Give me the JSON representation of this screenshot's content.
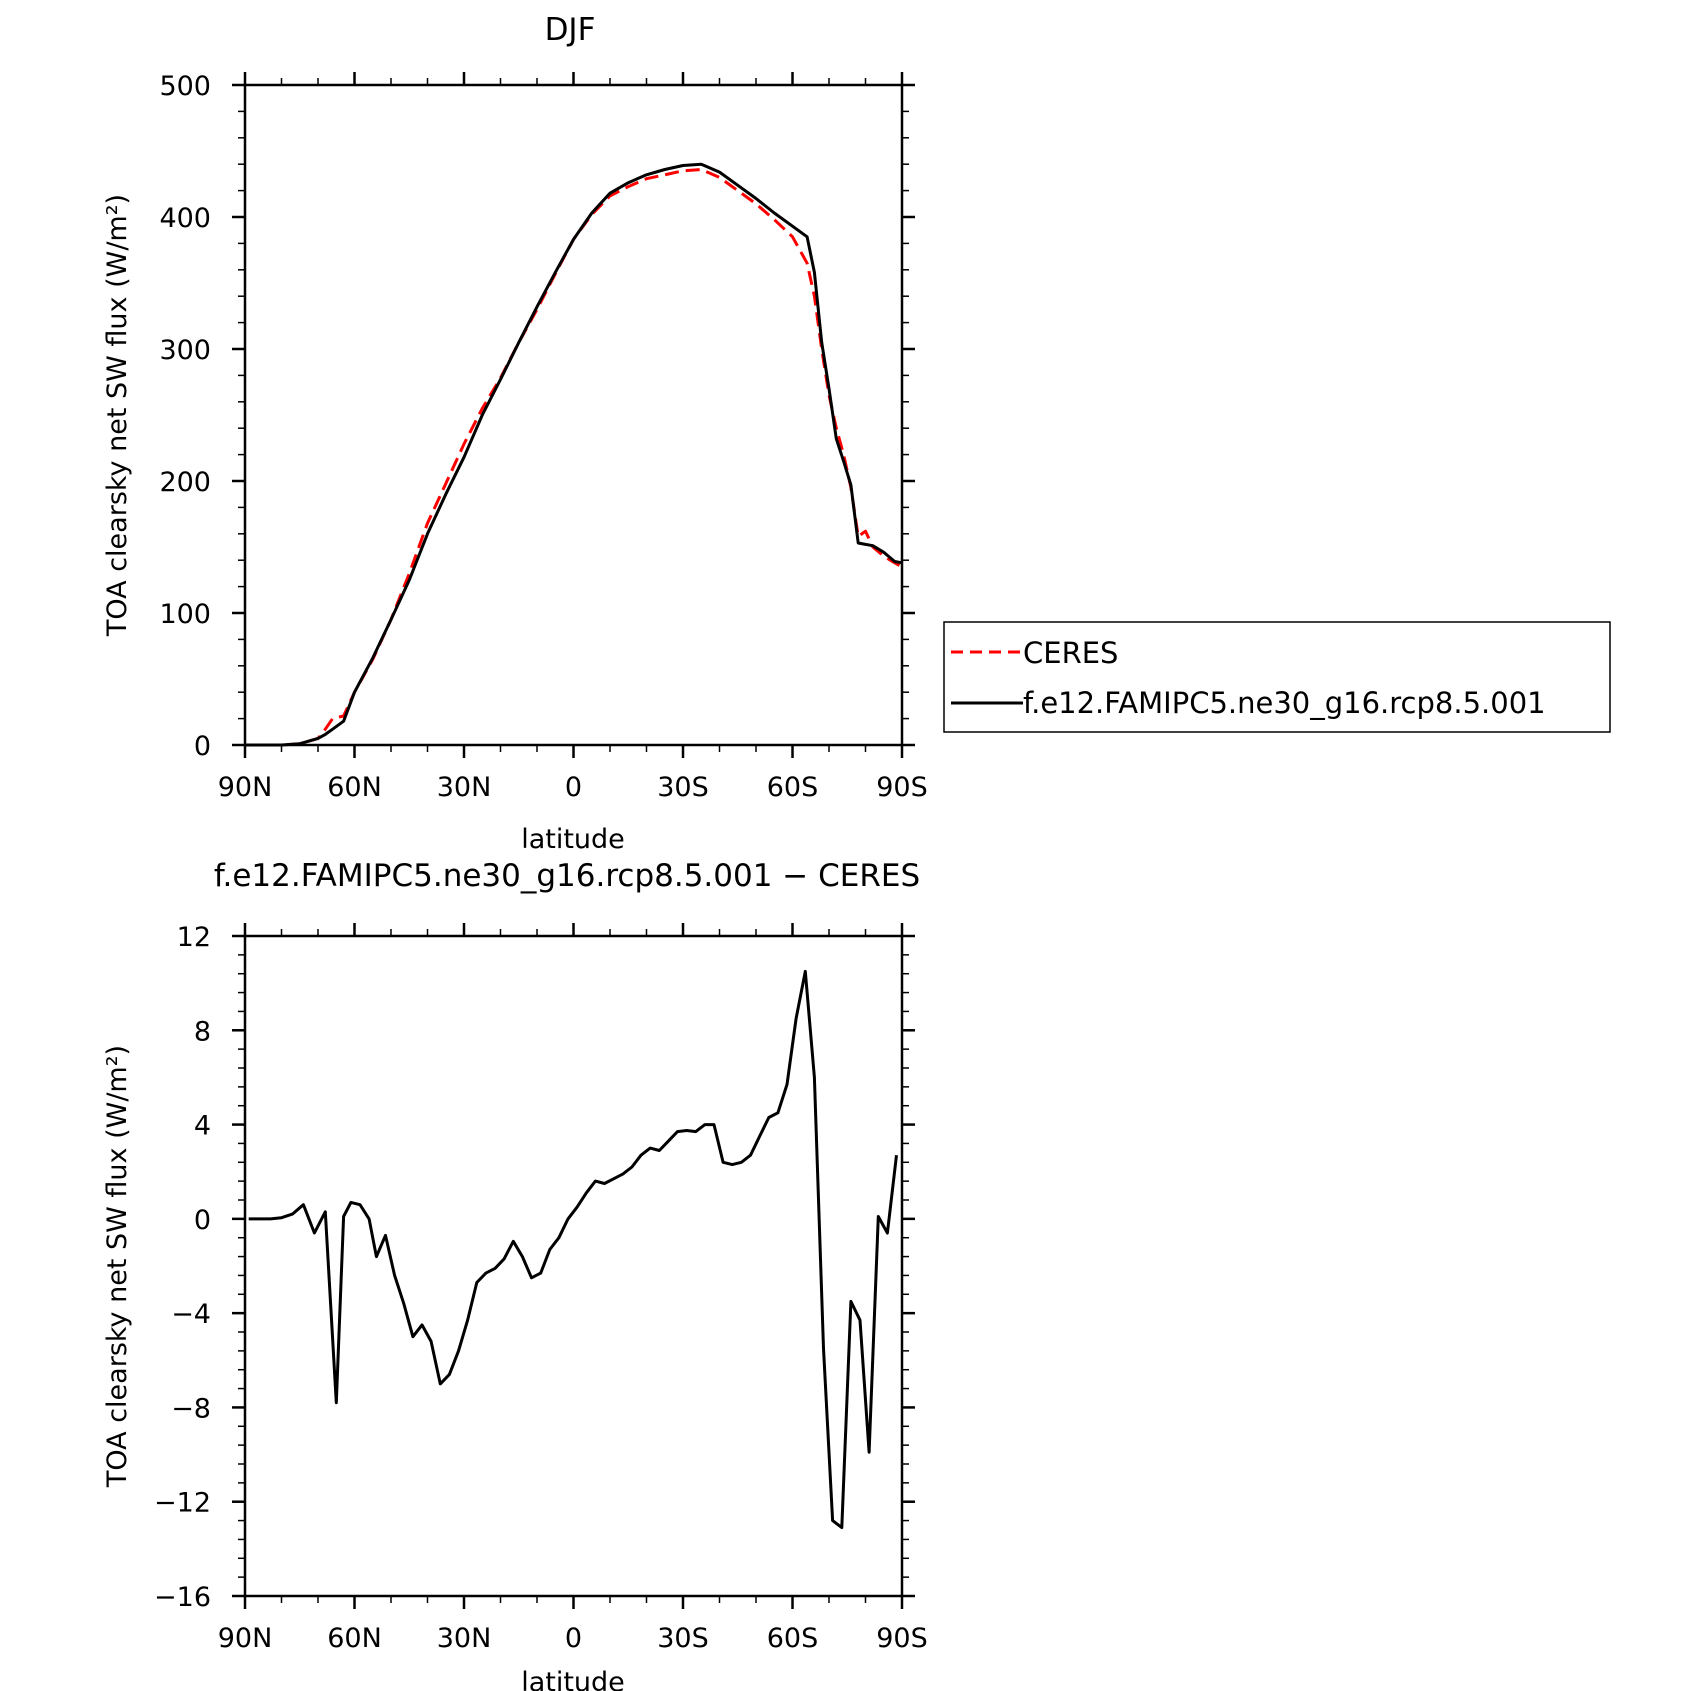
{
  "chart_data": [
    {
      "type": "line",
      "title": "DJF",
      "xlabel": "latitude",
      "ylabel": "TOA clearsky net SW flux (W/m²)",
      "xlim": [
        -90,
        90
      ],
      "ylim": [
        0,
        500
      ],
      "x_major_ticks": [
        -90,
        -60,
        -30,
        0,
        30,
        60,
        90
      ],
      "x_tick_labels": [
        "90N",
        "60N",
        "30N",
        "0",
        "30S",
        "60S",
        "90S"
      ],
      "y_major_ticks": [
        0,
        100,
        200,
        300,
        400,
        500
      ],
      "y_tick_labels": [
        "0",
        "100",
        "200",
        "300",
        "400",
        "500"
      ],
      "grid": false,
      "legend": {
        "placement": "right",
        "entries": [
          "CERES",
          "f.e12.FAMIPC5.ne30_g16.rcp8.5.001"
        ]
      },
      "series": [
        {
          "name": "CERES",
          "color": "#ff0000",
          "dash": "dashed",
          "x": [
            -90,
            -80,
            -75,
            -70,
            -68,
            -66,
            -63,
            -60,
            -55,
            -50,
            -45,
            -40,
            -35,
            -30,
            -25,
            -20,
            -15,
            -10,
            -5,
            0,
            5,
            10,
            15,
            20,
            25,
            30,
            35,
            40,
            45,
            50,
            55,
            60,
            64,
            66,
            68,
            70,
            72,
            74,
            76,
            78,
            80,
            82,
            85,
            88,
            90
          ],
          "values": [
            0,
            0,
            1,
            5,
            12,
            20,
            22,
            40,
            65,
            95,
            130,
            168,
            198,
            228,
            255,
            278,
            305,
            330,
            357,
            383,
            402,
            416,
            423,
            429,
            432,
            435,
            436,
            430,
            420,
            410,
            398,
            385,
            365,
            340,
            300,
            265,
            240,
            220,
            195,
            158,
            162,
            150,
            143,
            138,
            135
          ]
        },
        {
          "name": "f.e12.FAMIPC5.ne30_g16.rcp8.5.001",
          "color": "#000000",
          "dash": "solid",
          "x": [
            -90,
            -80,
            -75,
            -70,
            -68,
            -66,
            -63,
            -60,
            -55,
            -50,
            -45,
            -40,
            -35,
            -30,
            -25,
            -20,
            -15,
            -10,
            -5,
            0,
            5,
            10,
            15,
            20,
            25,
            30,
            35,
            40,
            45,
            50,
            55,
            60,
            64,
            66,
            68,
            70,
            72,
            74,
            76,
            78,
            80,
            82,
            85,
            88,
            90
          ],
          "values": [
            0,
            0,
            1,
            5,
            8,
            12,
            18,
            40,
            66,
            95,
            125,
            160,
            190,
            218,
            250,
            277,
            305,
            332,
            358,
            383,
            403,
            418,
            426,
            432,
            436,
            439,
            440,
            434,
            424,
            414,
            403,
            393,
            385,
            358,
            305,
            270,
            232,
            215,
            197,
            153,
            152,
            151,
            146,
            139,
            138
          ]
        }
      ]
    },
    {
      "type": "line",
      "title": "f.e12.FAMIPC5.ne30_g16.rcp8.5.001 − CERES",
      "xlabel": "latitude",
      "ylabel": "TOA clearsky net SW flux (W/m²)",
      "xlim": [
        -90,
        90
      ],
      "ylim": [
        -16,
        12
      ],
      "x_major_ticks": [
        -90,
        -60,
        -30,
        0,
        30,
        60,
        90
      ],
      "x_tick_labels": [
        "90N",
        "60N",
        "30N",
        "0",
        "30S",
        "60S",
        "90S"
      ],
      "y_major_ticks": [
        -16,
        -12,
        -8,
        -4,
        0,
        4,
        8,
        12
      ],
      "y_tick_labels": [
        "−16",
        "−12",
        "−8",
        "−4",
        "0",
        "4",
        "8",
        "12"
      ],
      "grid": false,
      "series": [
        {
          "color": "#000000",
          "dash": "solid",
          "x": [
            -89,
            -86,
            -83,
            -80,
            -77,
            -74,
            -71,
            -68,
            -65,
            -63,
            -61,
            -58.5,
            -56,
            -54,
            -51.5,
            -49,
            -46.5,
            -44,
            -41.5,
            -39,
            -36.5,
            -34,
            -31.5,
            -29,
            -26.5,
            -24,
            -21.5,
            -19,
            -16.5,
            -14,
            -11.5,
            -9,
            -6.5,
            -4,
            -1.5,
            1,
            3.5,
            6,
            8.5,
            11,
            13.5,
            16,
            18.5,
            21,
            23.5,
            26,
            28.5,
            31,
            33.5,
            36,
            38.5,
            41,
            43.5,
            46,
            48.5,
            51,
            53.5,
            56,
            58.5,
            61,
            63.5,
            66,
            68.5,
            71,
            73.5,
            76,
            78.5,
            81,
            83.5,
            86,
            88.5
          ],
          "values": [
            0,
            0,
            0,
            0.05,
            0.2,
            0.6,
            -0.6,
            0.3,
            -7.8,
            0.1,
            0.7,
            0.6,
            0,
            -1.6,
            -0.7,
            -2.4,
            -3.6,
            -5.0,
            -4.5,
            -5.2,
            -7.0,
            -6.6,
            -5.6,
            -4.3,
            -2.7,
            -2.3,
            -2.1,
            -1.7,
            -0.95,
            -1.6,
            -2.5,
            -2.3,
            -1.3,
            -0.8,
            0,
            0.5,
            1.1,
            1.6,
            1.5,
            1.7,
            1.9,
            2.2,
            2.7,
            3.0,
            2.9,
            3.3,
            3.7,
            3.75,
            3.7,
            4.0,
            4.0,
            2.4,
            2.3,
            2.4,
            2.7,
            3.5,
            4.3,
            4.5,
            5.7,
            8.5,
            10.5,
            6.0,
            -5.5,
            -12.8,
            -13.1,
            -3.5,
            -4.3,
            -9.9,
            0.1,
            -0.6,
            2.7
          ]
        }
      ]
    }
  ]
}
